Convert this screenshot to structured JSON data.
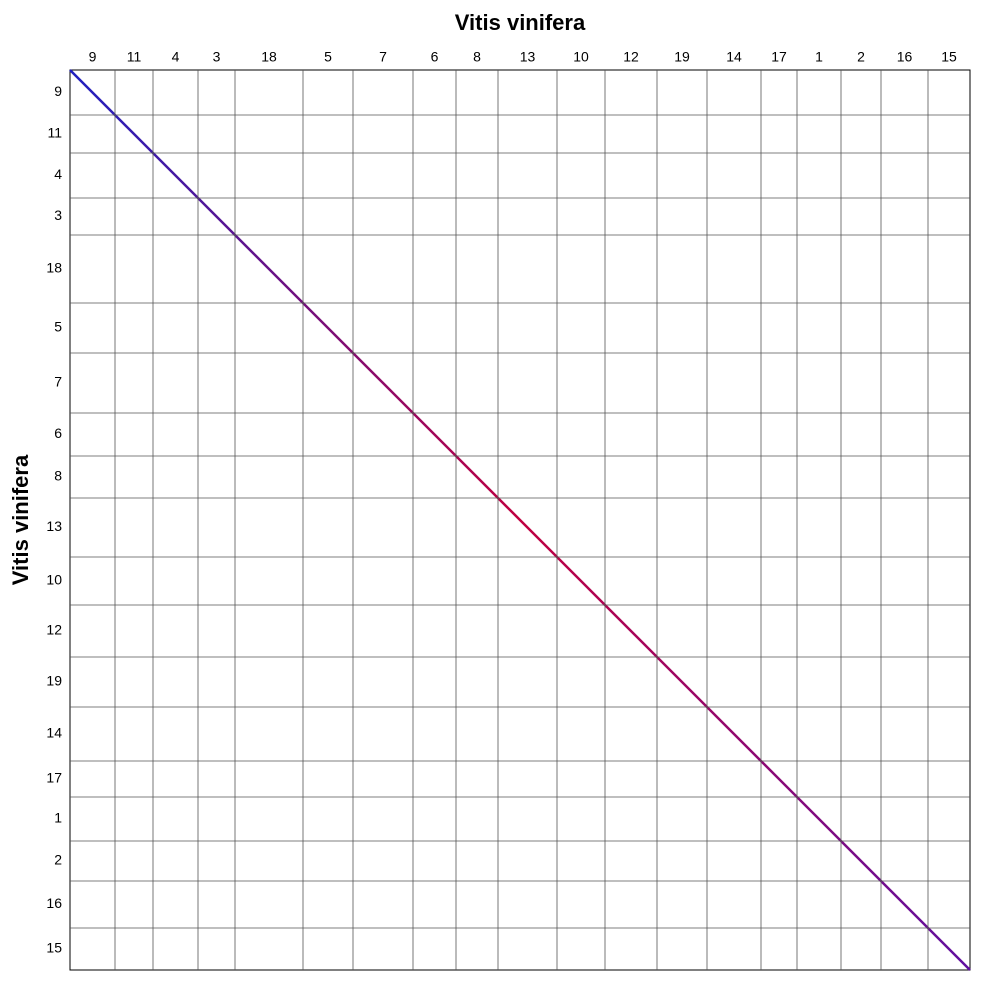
{
  "chart_data": {
    "type": "dotplot",
    "title": "Vitis vinifera",
    "xlabel": "Vitis vinifera",
    "ylabel": "Vitis vinifera",
    "chromosomes": [
      "9",
      "11",
      "4",
      "3",
      "18",
      "5",
      "7",
      "6",
      "8",
      "13",
      "10",
      "12",
      "19",
      "14",
      "17",
      "1",
      "2",
      "16",
      "15"
    ],
    "sizes": [
      45,
      38,
      45,
      37,
      68,
      50,
      60,
      43,
      42,
      59,
      48,
      52,
      50,
      54,
      36,
      44,
      40,
      47,
      42
    ]
  }
}
